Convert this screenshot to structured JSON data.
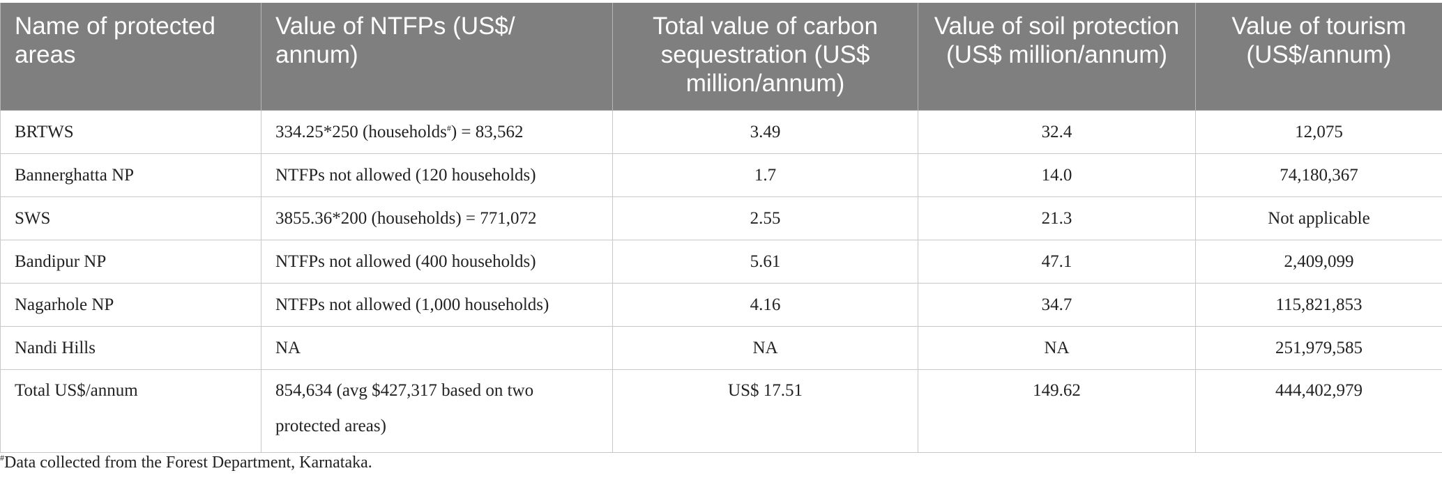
{
  "table": {
    "headers": [
      "Name of protected areas",
      "Value of NTFPs (US$/ annum)",
      "Total value of carbon sequestration (US$ million/annum)",
      "Value of soil protection (US$ million/annum)",
      "Value of tourism (US$/annum)"
    ],
    "rows": [
      {
        "name": "BRTWS",
        "ntfp_a": "334.25*250 (households",
        "ntfp_mark": "#",
        "ntfp_b": ") = 83,562",
        "carbon": "3.49",
        "soil": "32.4",
        "tourism": "12,075"
      },
      {
        "name": "Bannerghatta NP",
        "ntfp": "NTFPs not allowed (120 households)",
        "carbon": "1.7",
        "soil": "14.0",
        "tourism": "74,180,367"
      },
      {
        "name": "SWS",
        "ntfp": "3855.36*200 (households) = 771,072",
        "carbon": "2.55",
        "soil": "21.3",
        "tourism": "Not applicable"
      },
      {
        "name": "Bandipur NP",
        "ntfp": "NTFPs not allowed (400 households)",
        "carbon": "5.61",
        "soil": "47.1",
        "tourism": "2,409,099"
      },
      {
        "name": "Nagarhole NP",
        "ntfp": "NTFPs not allowed (1,000 households)",
        "carbon": "4.16",
        "soil": "34.7",
        "tourism": "115,821,853"
      },
      {
        "name": "Nandi Hills",
        "ntfp": "NA",
        "carbon": "NA",
        "soil": "NA",
        "tourism": "251,979,585"
      },
      {
        "name": "Total US$/annum",
        "ntfp": "854,634 (avg $427,317 based on two protected areas)",
        "carbon": "US$ 17.51",
        "soil": "149.62",
        "tourism": "444,402,979"
      }
    ]
  },
  "footnote": {
    "mark": "#",
    "text": "Data collected from the Forest Department, Karnataka."
  }
}
